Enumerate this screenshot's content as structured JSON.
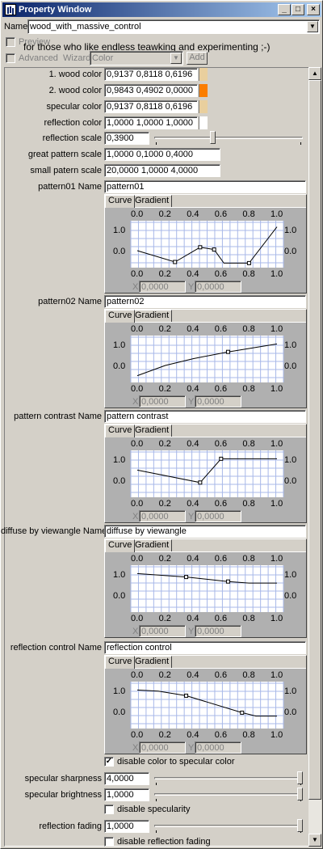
{
  "window": {
    "title": "Property Window",
    "min": "_",
    "max": "□",
    "close": "×"
  },
  "name": {
    "label": "Name",
    "value": "wood_with_massive_control"
  },
  "preview": {
    "label": "Preview"
  },
  "tagline": "for those who like endless teawking and experimenting ;-)",
  "advanced": {
    "label": "Advanced",
    "wizard_label": "Wizard",
    "wizard_value": "Color",
    "add_label": "Add"
  },
  "colors": [
    {
      "label": "1. wood color",
      "value": "0,9137 0,8118 0,6196",
      "swatch": "#e9cf9e"
    },
    {
      "label": "2. wood color",
      "value": "0,9843 0,4902 0,0000",
      "swatch": "#fb7d00"
    },
    {
      "label": "specular color",
      "value": "0,9137 0,8118 0,6196",
      "swatch": "#e9cf9e"
    },
    {
      "label": "reflection color",
      "value": "1,0000 1,0000 1,0000",
      "swatch": "#ffffff"
    }
  ],
  "reflection_scale": {
    "label": "reflection scale",
    "value": "0,3900",
    "fraction": 0.39
  },
  "great_pattern": {
    "label": "great pattern scale",
    "value": "1,0000 0,1000 0,4000"
  },
  "small_pattern": {
    "label": "small patern scale",
    "value": "20,0000 1,0000 4,0000"
  },
  "curve_tabs": {
    "curve": "Curve",
    "gradient": "Gradient"
  },
  "ticks": [
    "0.0",
    "0.2",
    "0.4",
    "0.6",
    "0.8",
    "1.0"
  ],
  "yticks": [
    "1.0",
    "0.0"
  ],
  "x_label": "X",
  "y_label": "Y",
  "xy_value": "0,0000",
  "curves": [
    {
      "label": "pattern01 Name",
      "value": "pattern01",
      "points": [
        [
          0,
          0.25
        ],
        [
          0.27,
          -0.25
        ],
        [
          0.45,
          0.4
        ],
        [
          0.55,
          0.3
        ],
        [
          0.62,
          -0.3
        ],
        [
          0.8,
          -0.3
        ],
        [
          1.0,
          1.3
        ]
      ],
      "ctrl": [
        [
          0.27,
          -0.25
        ],
        [
          0.45,
          0.4
        ],
        [
          0.55,
          0.3
        ],
        [
          0.8,
          -0.3
        ]
      ]
    },
    {
      "label": "pattern02 Name",
      "value": "pattern02",
      "points": [
        [
          0,
          -0.2
        ],
        [
          0.2,
          0.25
        ],
        [
          0.4,
          0.55
        ],
        [
          0.65,
          0.85
        ],
        [
          1.0,
          1.2
        ]
      ],
      "ctrl": [
        [
          0.65,
          0.85
        ]
      ]
    },
    {
      "label": "pattern contrast Name",
      "value": "pattern contrast",
      "points": [
        [
          0,
          0.7
        ],
        [
          0.45,
          0.15
        ],
        [
          0.6,
          1.2
        ],
        [
          1.0,
          1.2
        ]
      ],
      "ctrl": [
        [
          0.45,
          0.15
        ],
        [
          0.6,
          1.2
        ]
      ]
    },
    {
      "label": "diffuse by viewangle Name",
      "value": "diffuse by viewangle",
      "points": [
        [
          0,
          1.2
        ],
        [
          0.35,
          1.05
        ],
        [
          0.65,
          0.85
        ],
        [
          0.8,
          0.78
        ],
        [
          1.0,
          0.78
        ]
      ],
      "ctrl": [
        [
          0.35,
          1.05
        ],
        [
          0.65,
          0.85
        ]
      ]
    },
    {
      "label": "reflection control Name",
      "value": "reflection control",
      "points": [
        [
          0,
          1.2
        ],
        [
          0.15,
          1.15
        ],
        [
          0.35,
          0.95
        ],
        [
          0.75,
          0.2
        ],
        [
          0.85,
          0.05
        ],
        [
          1.0,
          0.05
        ]
      ],
      "ctrl": [
        [
          0.35,
          0.95
        ],
        [
          0.75,
          0.2
        ]
      ]
    }
  ],
  "disable_color_spec": {
    "label": "disable color to specular color",
    "checked": "✓"
  },
  "spec_sharp": {
    "label": "specular sharpness",
    "value": "4,0000",
    "fraction": 1.0
  },
  "spec_bright": {
    "label": "specular brightness",
    "value": "1,0000",
    "fraction": 1.0
  },
  "disable_specularity": {
    "label": "disable specularity"
  },
  "refl_fading": {
    "label": "reflection fading",
    "value": "1,0000",
    "fraction": 1.0
  },
  "disable_refl_fading": {
    "label": "disable reflection fading"
  }
}
